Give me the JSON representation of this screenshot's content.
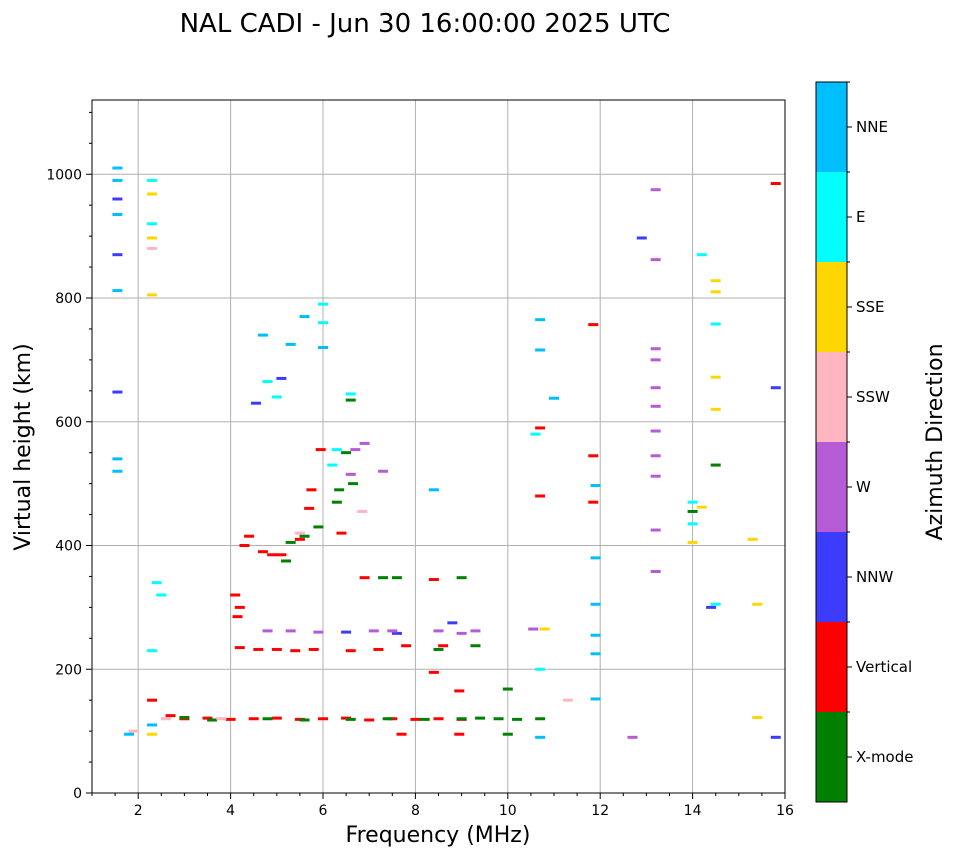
{
  "chart_data": {
    "type": "scatter",
    "title": "NAL CADI - Jun 30 16:00:00 2025 UTC",
    "xlabel": "Frequency (MHz)",
    "ylabel": "Virtual height (km)",
    "xlim": [
      1,
      16
    ],
    "ylim": [
      0,
      1120
    ],
    "xticks": [
      2,
      4,
      6,
      8,
      10,
      12,
      14,
      16
    ],
    "yticks": [
      0,
      200,
      400,
      600,
      800,
      1000
    ],
    "grid": true,
    "colorbar": {
      "label": "Azimuth Direction",
      "categories": [
        {
          "name": "X-mode",
          "color": "#008000"
        },
        {
          "name": "Vertical",
          "color": "#ff0000"
        },
        {
          "name": "NNW",
          "color": "#3c3cff"
        },
        {
          "name": "W",
          "color": "#b55bd6"
        },
        {
          "name": "SSW",
          "color": "#ffb6c1"
        },
        {
          "name": "SSE",
          "color": "#ffd700"
        },
        {
          "name": "E",
          "color": "#00ffff"
        },
        {
          "name": "NNE",
          "color": "#00bfff"
        }
      ]
    },
    "series": [
      {
        "name": "Vertical",
        "points": [
          [
            3.0,
            120
          ],
          [
            3.5,
            121
          ],
          [
            4.0,
            119
          ],
          [
            4.5,
            120
          ],
          [
            5.0,
            121
          ],
          [
            5.5,
            119
          ],
          [
            6.0,
            120
          ],
          [
            6.5,
            121
          ],
          [
            7.0,
            118
          ],
          [
            7.5,
            120
          ],
          [
            8.0,
            119
          ],
          [
            8.5,
            120
          ],
          [
            9.0,
            119
          ],
          [
            2.3,
            150
          ],
          [
            2.7,
            125
          ],
          [
            4.2,
            235
          ],
          [
            4.6,
            232
          ],
          [
            5.0,
            232
          ],
          [
            5.4,
            230
          ],
          [
            5.8,
            232
          ],
          [
            6.6,
            230
          ],
          [
            7.2,
            232
          ],
          [
            7.8,
            238
          ],
          [
            8.6,
            238
          ],
          [
            4.1,
            320
          ],
          [
            4.2,
            300
          ],
          [
            4.15,
            285
          ],
          [
            4.3,
            400
          ],
          [
            4.4,
            415
          ],
          [
            4.7,
            390
          ],
          [
            4.9,
            385
          ],
          [
            5.1,
            385
          ],
          [
            5.5,
            410
          ],
          [
            5.7,
            460
          ],
          [
            5.75,
            490
          ],
          [
            5.95,
            555
          ],
          [
            6.4,
            420
          ],
          [
            6.9,
            348
          ],
          [
            8.4,
            345
          ],
          [
            8.4,
            195
          ],
          [
            8.95,
            165
          ],
          [
            8.95,
            95
          ],
          [
            7.7,
            95
          ],
          [
            10.7,
            480
          ],
          [
            10.7,
            590
          ],
          [
            11.85,
            545
          ],
          [
            11.85,
            470
          ],
          [
            11.85,
            757
          ],
          [
            15.8,
            985
          ]
        ]
      },
      {
        "name": "X-mode",
        "points": [
          [
            3.0,
            122
          ],
          [
            3.6,
            118
          ],
          [
            4.8,
            120
          ],
          [
            5.6,
            118
          ],
          [
            6.6,
            119
          ],
          [
            7.4,
            120
          ],
          [
            8.2,
            119
          ],
          [
            9.0,
            120
          ],
          [
            9.4,
            121
          ],
          [
            9.8,
            120
          ],
          [
            10.2,
            119
          ],
          [
            10.7,
            120
          ],
          [
            10.0,
            168
          ],
          [
            10.0,
            95
          ],
          [
            5.3,
            405
          ],
          [
            5.6,
            415
          ],
          [
            5.9,
            430
          ],
          [
            6.3,
            470
          ],
          [
            6.35,
            490
          ],
          [
            6.65,
            500
          ],
          [
            6.5,
            550
          ],
          [
            6.6,
            635
          ],
          [
            7.3,
            348
          ],
          [
            7.6,
            348
          ],
          [
            9.0,
            348
          ],
          [
            5.2,
            375
          ],
          [
            14.5,
            530
          ],
          [
            8.5,
            232
          ],
          [
            9.3,
            238
          ],
          [
            14.0,
            455
          ]
        ]
      },
      {
        "name": "NNW",
        "points": [
          [
            1.55,
            870
          ],
          [
            1.55,
            648
          ],
          [
            1.55,
            960
          ],
          [
            4.55,
            630
          ],
          [
            5.1,
            670
          ],
          [
            6.5,
            260
          ],
          [
            7.6,
            258
          ],
          [
            8.8,
            275
          ],
          [
            14.4,
            300
          ],
          [
            15.8,
            655
          ],
          [
            15.8,
            90
          ],
          [
            12.9,
            897
          ]
        ]
      },
      {
        "name": "W",
        "points": [
          [
            4.8,
            262
          ],
          [
            5.3,
            262
          ],
          [
            5.9,
            260
          ],
          [
            7.1,
            262
          ],
          [
            7.5,
            262
          ],
          [
            8.5,
            262
          ],
          [
            9.0,
            258
          ],
          [
            9.3,
            262
          ],
          [
            10.55,
            265
          ],
          [
            13.2,
            425
          ],
          [
            13.2,
            358
          ],
          [
            13.2,
            512
          ],
          [
            13.2,
            545
          ],
          [
            13.2,
            585
          ],
          [
            13.2,
            625
          ],
          [
            13.2,
            655
          ],
          [
            13.2,
            700
          ],
          [
            13.2,
            718
          ],
          [
            13.2,
            862
          ],
          [
            13.2,
            975
          ],
          [
            12.7,
            90
          ],
          [
            6.7,
            555
          ],
          [
            6.9,
            565
          ],
          [
            7.3,
            520
          ],
          [
            6.6,
            515
          ]
        ]
      },
      {
        "name": "SSW",
        "points": [
          [
            1.9,
            100
          ],
          [
            2.6,
            120
          ],
          [
            3.8,
            120
          ],
          [
            11.3,
            150
          ],
          [
            2.3,
            880
          ],
          [
            6.85,
            455
          ],
          [
            5.5,
            420
          ]
        ]
      },
      {
        "name": "SSE",
        "points": [
          [
            2.3,
            968
          ],
          [
            2.3,
            805
          ],
          [
            2.3,
            897
          ],
          [
            14.5,
            828
          ],
          [
            14.5,
            810
          ],
          [
            14.5,
            672
          ],
          [
            14.5,
            620
          ],
          [
            14.2,
            462
          ],
          [
            15.3,
            410
          ],
          [
            15.4,
            305
          ],
          [
            15.4,
            122
          ],
          [
            10.8,
            265
          ],
          [
            2.3,
            95
          ],
          [
            14.0,
            405
          ]
        ]
      },
      {
        "name": "E",
        "points": [
          [
            2.4,
            340
          ],
          [
            2.5,
            320
          ],
          [
            2.3,
            990
          ],
          [
            2.3,
            920
          ],
          [
            4.8,
            665
          ],
          [
            5.0,
            640
          ],
          [
            6.0,
            790
          ],
          [
            6.0,
            760
          ],
          [
            6.6,
            645
          ],
          [
            10.6,
            580
          ],
          [
            10.7,
            200
          ],
          [
            14.5,
            758
          ],
          [
            14.5,
            305
          ],
          [
            14.2,
            870
          ],
          [
            6.3,
            555
          ],
          [
            6.2,
            530
          ],
          [
            14.0,
            470
          ],
          [
            14.0,
            435
          ],
          [
            2.3,
            230
          ]
        ]
      },
      {
        "name": "NNE",
        "points": [
          [
            1.55,
            1010
          ],
          [
            1.55,
            990
          ],
          [
            1.55,
            935
          ],
          [
            1.55,
            520
          ],
          [
            1.55,
            540
          ],
          [
            1.55,
            812
          ],
          [
            4.7,
            740
          ],
          [
            5.3,
            725
          ],
          [
            5.6,
            770
          ],
          [
            6.0,
            720
          ],
          [
            10.7,
            765
          ],
          [
            10.7,
            716
          ],
          [
            10.7,
            90
          ],
          [
            11.9,
            380
          ],
          [
            11.9,
            305
          ],
          [
            11.9,
            255
          ],
          [
            11.9,
            225
          ],
          [
            11.9,
            152
          ],
          [
            11.9,
            497
          ],
          [
            11.0,
            638
          ],
          [
            8.4,
            490
          ],
          [
            2.3,
            110
          ],
          [
            1.8,
            95
          ]
        ]
      }
    ]
  }
}
